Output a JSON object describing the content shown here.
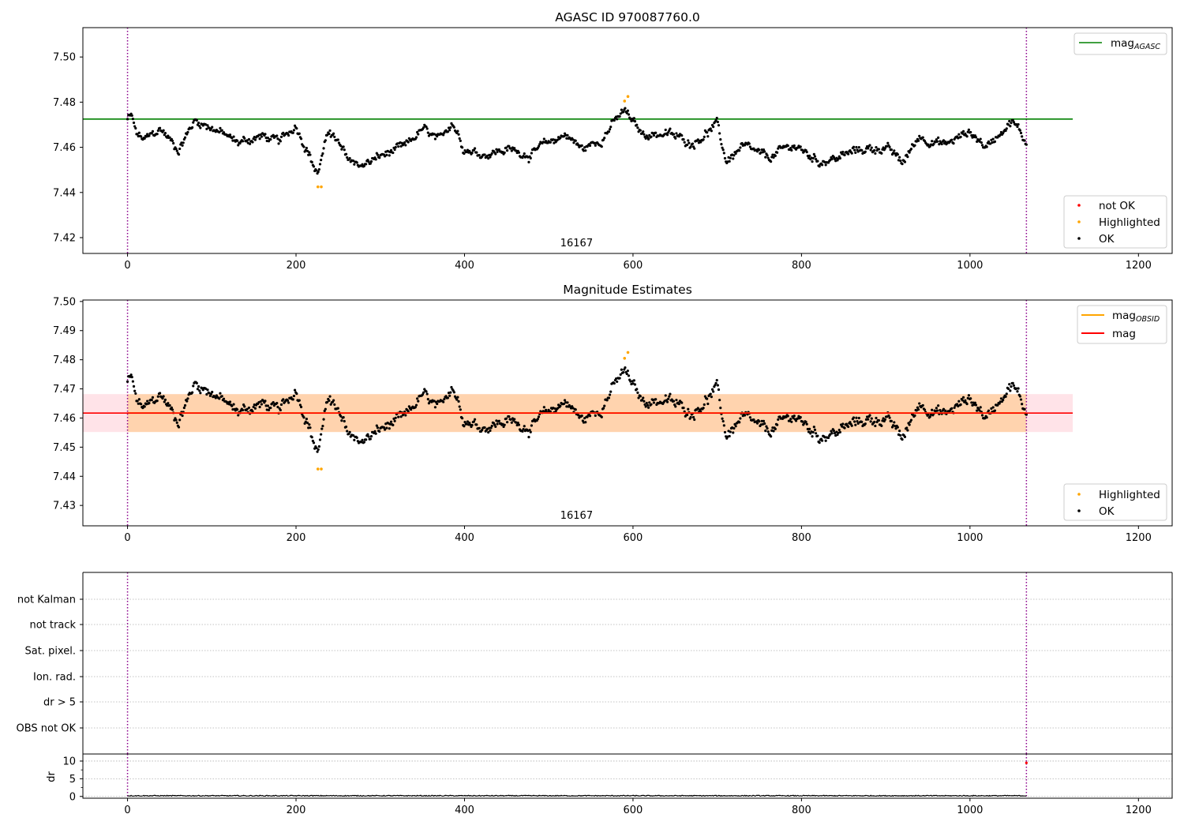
{
  "chart_data": [
    {
      "type": "scatter",
      "title": "AGASC ID 970087760.0",
      "xlim": [
        -53,
        1240
      ],
      "ylim": [
        7.413,
        7.513
      ],
      "xticks": [
        "0",
        "200",
        "400",
        "600",
        "800",
        "1000",
        "1200"
      ],
      "xtick_values": [
        0,
        200,
        400,
        600,
        800,
        1000,
        1200
      ],
      "yticks": [
        "7.42",
        "7.44",
        "7.46",
        "7.48",
        "7.50"
      ],
      "ytick_values": [
        7.42,
        7.44,
        7.46,
        7.48,
        7.5
      ],
      "obsid_label": "16167",
      "obsid_label_x": 533,
      "vlines": [
        0,
        1067
      ],
      "hline": {
        "y": 7.4725,
        "x": [
          -53,
          1122
        ],
        "color": "#008000"
      },
      "trend": {
        "x": [
          0,
          5,
          10,
          20,
          40,
          60,
          80,
          100,
          130,
          160,
          180,
          200,
          215,
          225,
          240,
          260,
          280,
          300,
          330,
          350,
          370,
          385,
          400,
          420,
          450,
          480,
          500,
          520,
          540,
          560,
          575,
          590,
          610,
          640,
          670,
          700,
          710,
          730,
          760,
          790,
          820,
          840,
          870,
          900,
          920,
          940,
          970,
          1000,
          1020,
          1040,
          1050,
          1067
        ],
        "y": [
          7.4725,
          7.474,
          7.466,
          7.463,
          7.468,
          7.459,
          7.472,
          7.469,
          7.462,
          7.465,
          7.462,
          7.47,
          7.458,
          7.448,
          7.468,
          7.455,
          7.452,
          7.456,
          7.46,
          7.468,
          7.462,
          7.472,
          7.46,
          7.457,
          7.459,
          7.457,
          7.462,
          7.466,
          7.459,
          7.463,
          7.47,
          7.476,
          7.466,
          7.466,
          7.462,
          7.47,
          7.454,
          7.46,
          7.455,
          7.461,
          7.454,
          7.455,
          7.459,
          7.46,
          7.453,
          7.465,
          7.461,
          7.467,
          7.46,
          7.469,
          7.472,
          7.462
        ]
      },
      "noise_amplitude": 0.003,
      "n_points": 1000,
      "highlighted": {
        "x": [
          226,
          230,
          590,
          594
        ],
        "y": [
          7.4425,
          7.4425,
          7.4805,
          7.4825
        ]
      },
      "legend_lines": [
        {
          "label": "mag",
          "sub": "AGASC",
          "color": "#008000"
        }
      ],
      "legend_points": [
        {
          "label": "not OK",
          "color": "#ff0000"
        },
        {
          "label": "Highlighted",
          "color": "#ffa500"
        },
        {
          "label": "OK",
          "color": "#000000"
        }
      ]
    },
    {
      "type": "scatter",
      "title": "Magnitude Estimates",
      "xlim": [
        -53,
        1240
      ],
      "ylim": [
        7.423,
        7.5005
      ],
      "xticks": [
        "0",
        "200",
        "400",
        "600",
        "800",
        "1000",
        "1200"
      ],
      "xtick_values": [
        0,
        200,
        400,
        600,
        800,
        1000,
        1200
      ],
      "yticks": [
        "7.43",
        "7.44",
        "7.45",
        "7.46",
        "7.47",
        "7.48",
        "7.49",
        "7.50"
      ],
      "ytick_values": [
        7.43,
        7.44,
        7.45,
        7.46,
        7.47,
        7.48,
        7.49,
        7.5
      ],
      "obsid_label": "16167",
      "obsid_label_x": 533,
      "vlines": [
        0,
        1067
      ],
      "mean": 7.4617,
      "bands": [
        {
          "x": [
            -53,
            1122
          ],
          "y": [
            7.4552,
            7.4682
          ],
          "color": "#ffc0cb",
          "opacity": 0.45
        },
        {
          "x": [
            0,
            1067
          ],
          "y": [
            7.4552,
            7.4682
          ],
          "color": "#ffa500",
          "opacity": 0.25
        }
      ],
      "highlighted": {
        "x": [
          226,
          230,
          590,
          594
        ],
        "y": [
          7.4425,
          7.4425,
          7.4805,
          7.4825
        ]
      },
      "legend_lines": [
        {
          "label": "mag",
          "sub": "OBSID",
          "color": "#ffa500"
        },
        {
          "label": "mag",
          "sub": "",
          "color": "#ff0000"
        }
      ],
      "legend_points": [
        {
          "label": "Highlighted",
          "color": "#ffa500"
        },
        {
          "label": "OK",
          "color": "#000000"
        }
      ]
    },
    {
      "type": "scatter",
      "title": "",
      "xlim": [
        -53,
        1240
      ],
      "flag_categories": [
        "not Kalman",
        "not track",
        "Sat. pixel.",
        "Ion. rad.",
        "dr > 5",
        "OBS not OK"
      ],
      "vlines": [
        0,
        1067
      ]
    },
    {
      "type": "line",
      "title": "",
      "xlim": [
        -53,
        1240
      ],
      "ylim": [
        -0.5,
        12
      ],
      "ylabel": "dr",
      "yticks": [
        "0",
        "5",
        "10"
      ],
      "ytick_values": [
        0,
        5,
        10
      ],
      "xticks": [
        "0",
        "200",
        "400",
        "600",
        "800",
        "1000",
        "1200"
      ],
      "xtick_values": [
        0,
        200,
        400,
        600,
        800,
        1000,
        1200
      ],
      "vlines": [
        0,
        1067
      ],
      "dr_level": 0.2,
      "dr_end_point": {
        "x": 1067,
        "y": 9.5,
        "color": "#ff0000"
      }
    }
  ]
}
